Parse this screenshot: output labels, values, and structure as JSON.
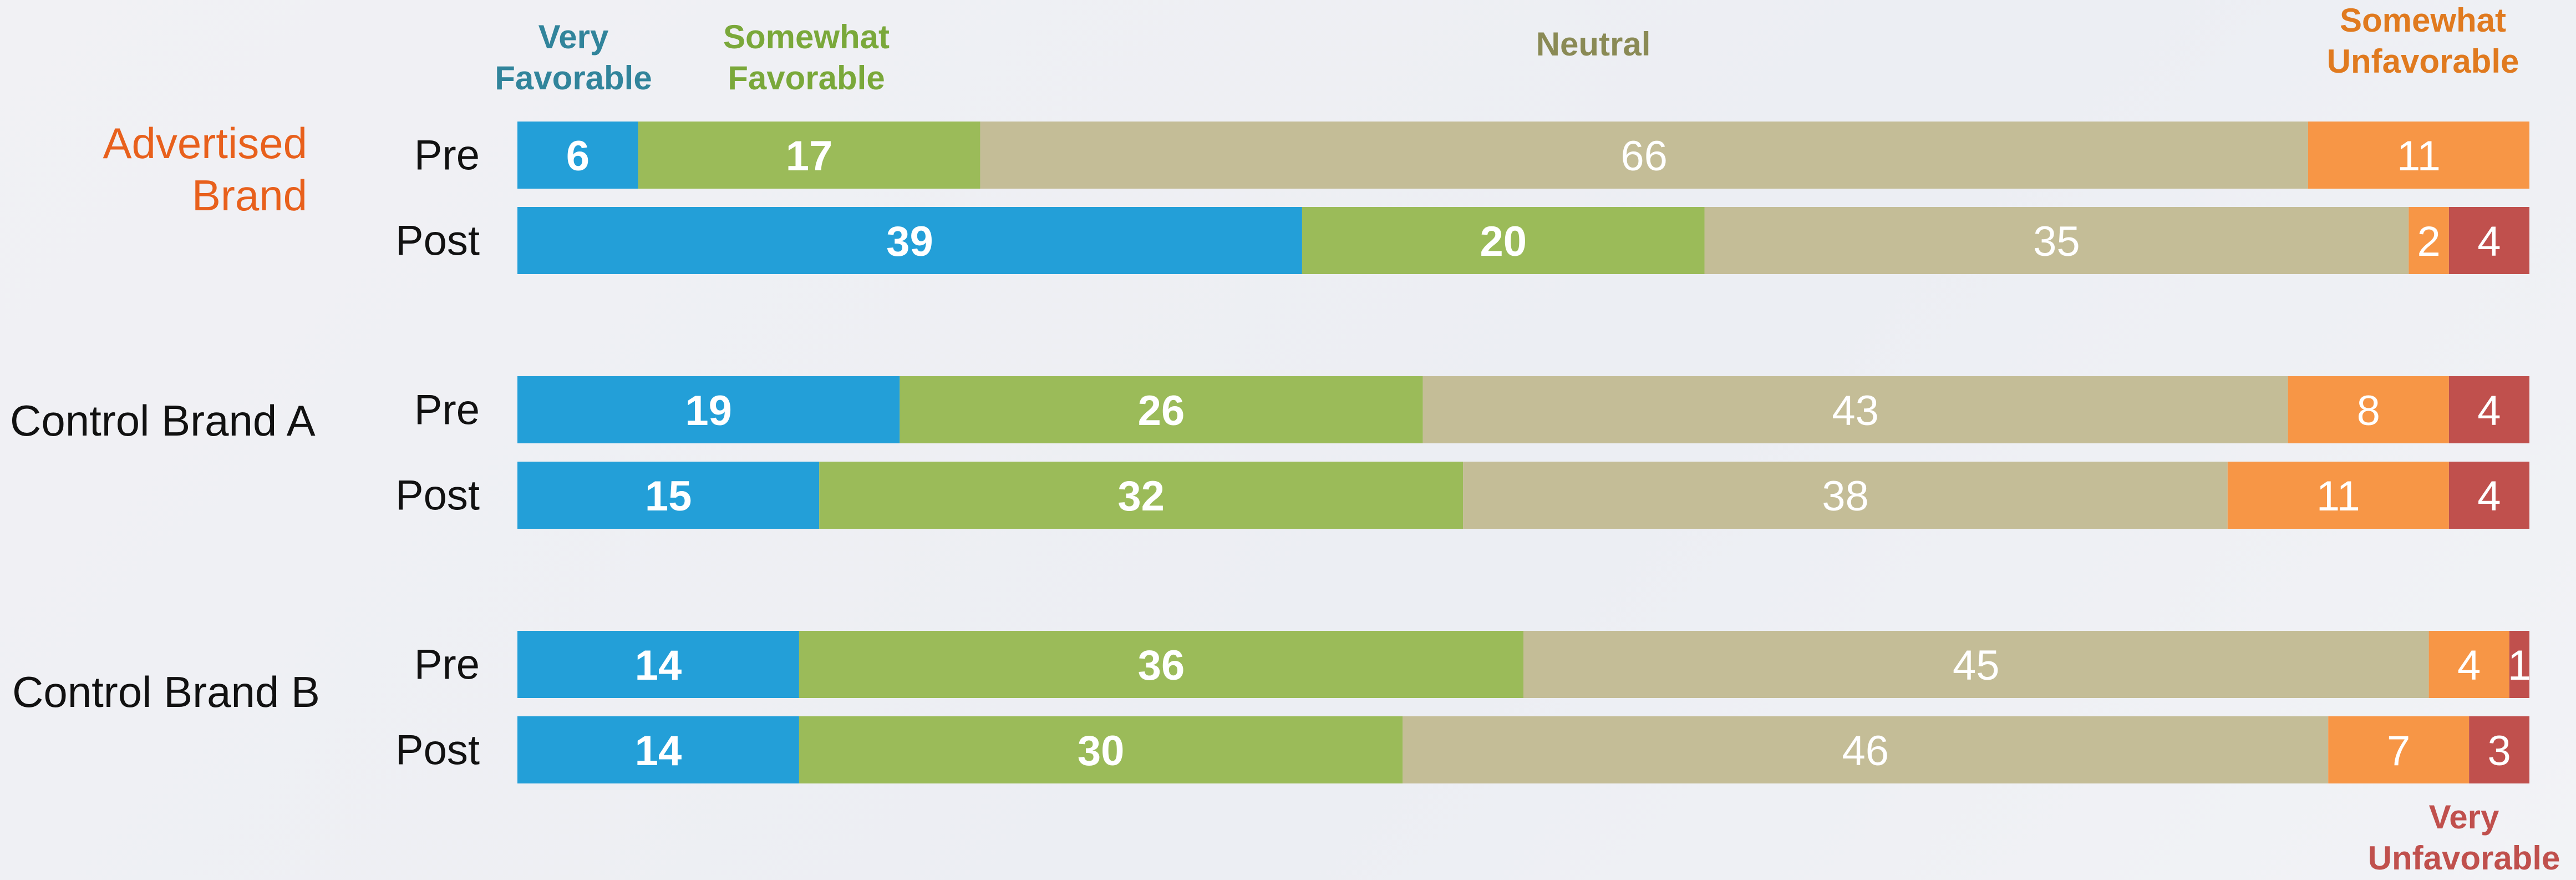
{
  "chart_data": {
    "type": "stacked-bar-horizontal",
    "groups": [
      {
        "name": "Advertised Brand",
        "color": "#e8601c"
      },
      {
        "name": "Control Brand A",
        "color": "#111111"
      },
      {
        "name": "Control Brand B",
        "color": "#111111"
      }
    ],
    "categories": [
      "Pre",
      "Post",
      "Pre",
      "Post",
      "Pre",
      "Post"
    ],
    "series": [
      {
        "name": "Very Favorable",
        "color": "#239fd8",
        "label_color": "#31849b",
        "values": [
          6,
          39,
          19,
          15,
          14,
          14
        ]
      },
      {
        "name": "Somewhat Favorable",
        "color": "#9bbb59",
        "label_color": "#7aa83a",
        "values": [
          17,
          20,
          26,
          32,
          36,
          30
        ]
      },
      {
        "name": "Neutral",
        "color": "#c4bd97",
        "label_color": "#8a8a55",
        "values": [
          66,
          35,
          43,
          38,
          45,
          46
        ]
      },
      {
        "name": "Somewhat Unfavorable",
        "color": "#f79646",
        "label_color": "#e07a1f",
        "values": [
          11,
          2,
          8,
          11,
          4,
          7
        ]
      },
      {
        "name": "Very Unfavorable",
        "color": "#c0504d",
        "label_color": "#c0504d",
        "values": [
          null,
          4,
          4,
          4,
          1,
          3
        ]
      }
    ]
  }
}
